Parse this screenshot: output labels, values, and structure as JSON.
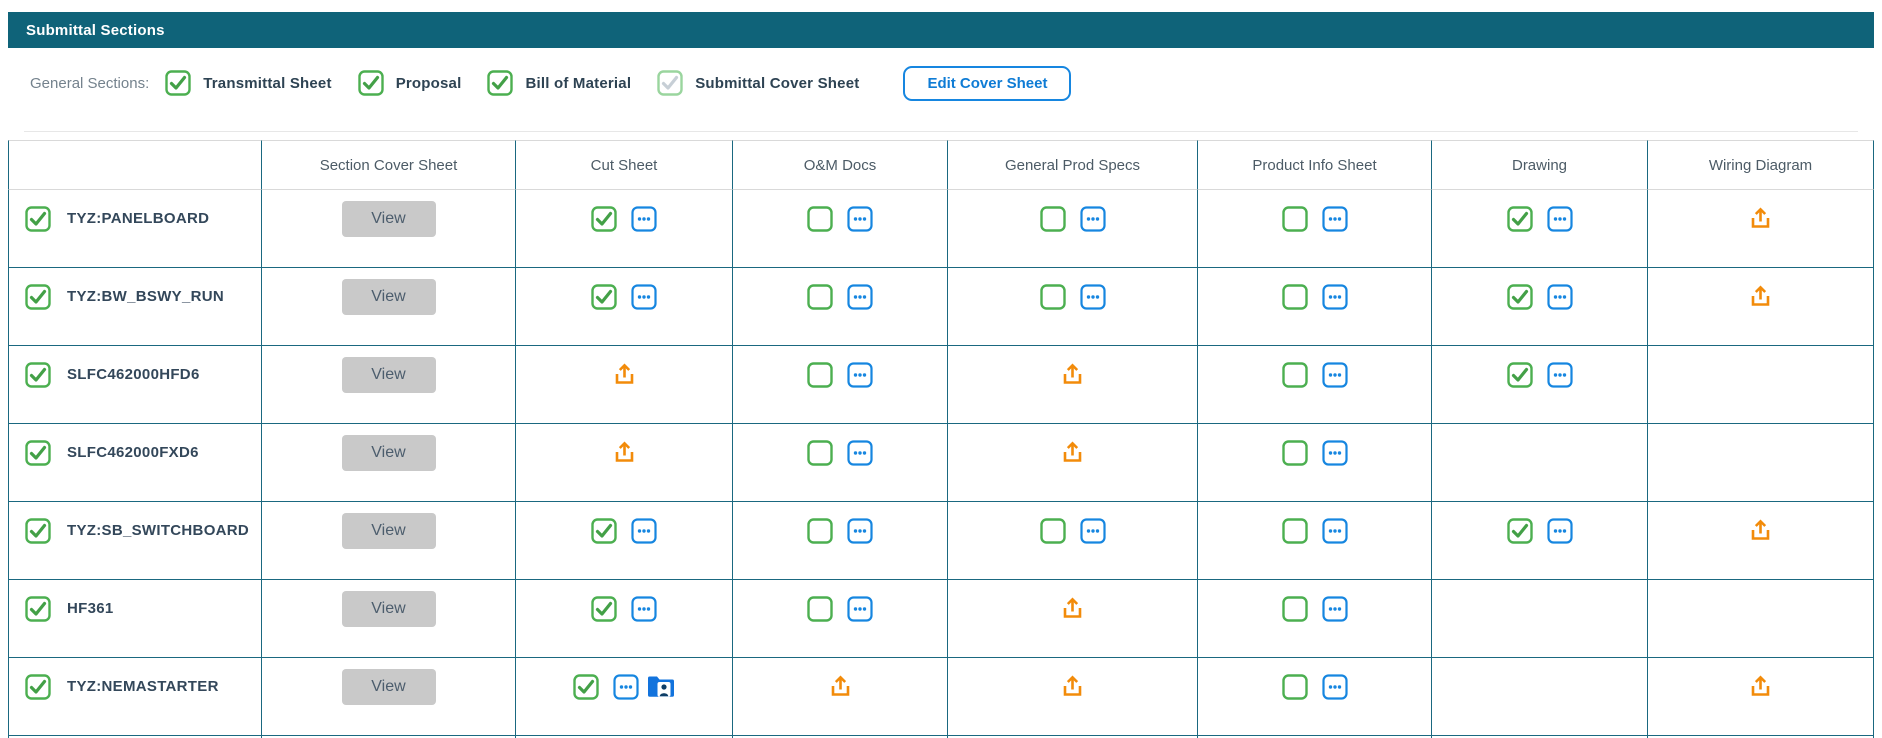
{
  "panel": {
    "title": "Submittal Sections"
  },
  "general_sections": {
    "label": "General Sections:",
    "items": [
      {
        "label": "Transmittal Sheet",
        "checked": true,
        "disabled": false
      },
      {
        "label": "Proposal",
        "checked": true,
        "disabled": false
      },
      {
        "label": "Bill of Material",
        "checked": true,
        "disabled": false
      },
      {
        "label": "Submittal Cover Sheet",
        "checked": true,
        "disabled": true
      }
    ],
    "edit_button_label": "Edit Cover Sheet"
  },
  "table": {
    "columns": [
      "",
      "Section Cover Sheet",
      "Cut Sheet",
      "O&M Docs",
      "General Prod Specs",
      "Product Info Sheet",
      "Drawing",
      "Wiring Diagram"
    ],
    "view_button_label": "View",
    "cell_legend": {
      "checked": "green checked checkbox + blue ellipsis menu button",
      "unchecked": "green unchecked checkbox + blue ellipsis menu button",
      "checked_folder": "green checked checkbox + blue ellipsis menu button + blue shared-folder icon",
      "upload": "orange upload icon",
      "empty": "no content"
    },
    "rows": [
      {
        "name": "TYZ:PANELBOARD",
        "checked": true,
        "cells": {
          "cut_sheet": "checked",
          "om_docs": "unchecked",
          "general_prod_specs": "unchecked",
          "product_info_sheet": "unchecked",
          "drawing": "checked",
          "wiring_diagram": "upload"
        }
      },
      {
        "name": "TYZ:BW_BSWY_RUN",
        "checked": true,
        "cells": {
          "cut_sheet": "checked",
          "om_docs": "unchecked",
          "general_prod_specs": "unchecked",
          "product_info_sheet": "unchecked",
          "drawing": "checked",
          "wiring_diagram": "upload"
        }
      },
      {
        "name": "SLFC462000HFD6",
        "checked": true,
        "cells": {
          "cut_sheet": "upload",
          "om_docs": "unchecked",
          "general_prod_specs": "upload",
          "product_info_sheet": "unchecked",
          "drawing": "checked",
          "wiring_diagram": "empty"
        }
      },
      {
        "name": "SLFC462000FXD6",
        "checked": true,
        "cells": {
          "cut_sheet": "upload",
          "om_docs": "unchecked",
          "general_prod_specs": "upload",
          "product_info_sheet": "unchecked",
          "drawing": "empty",
          "wiring_diagram": "empty"
        }
      },
      {
        "name": "TYZ:SB_SWITCHBOARD",
        "checked": true,
        "cells": {
          "cut_sheet": "checked",
          "om_docs": "unchecked",
          "general_prod_specs": "unchecked",
          "product_info_sheet": "unchecked",
          "drawing": "checked",
          "wiring_diagram": "upload"
        }
      },
      {
        "name": "HF361",
        "checked": true,
        "cells": {
          "cut_sheet": "checked",
          "om_docs": "unchecked",
          "general_prod_specs": "upload",
          "product_info_sheet": "unchecked",
          "drawing": "empty",
          "wiring_diagram": "empty"
        }
      },
      {
        "name": "TYZ:NEMASTARTER",
        "checked": true,
        "cells": {
          "cut_sheet": "checked_folder",
          "om_docs": "upload",
          "general_prod_specs": "upload",
          "product_info_sheet": "unchecked",
          "drawing": "empty",
          "wiring_diagram": "upload"
        }
      }
    ]
  },
  "colors": {
    "header_bg": "#0f6379",
    "accent_blue": "#1686e0",
    "check_green": "#4caf50",
    "check_green_dark": "#43a047",
    "disabled_check_border": "#9ad59e",
    "disabled_check_mark": "#c7cfd6",
    "upload_orange": "#f28b0a",
    "view_button_bg": "#c9c9c9",
    "table_border": "#1a6880",
    "folder_blue": "#1273dd"
  }
}
